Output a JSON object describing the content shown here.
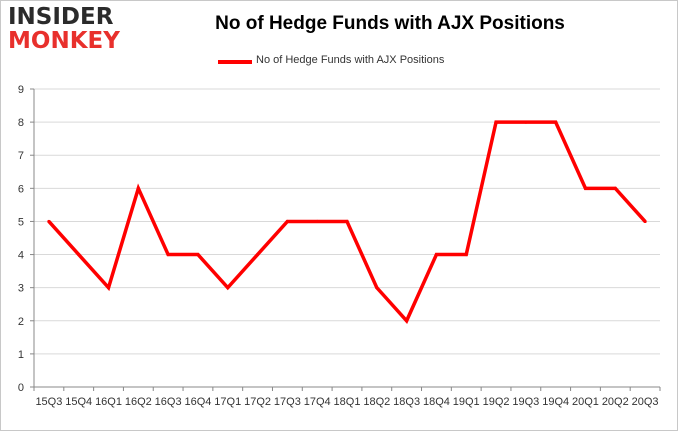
{
  "logo": {
    "line1": "INSIDER",
    "line2": "MONKEY"
  },
  "chart_data": {
    "type": "line",
    "title": "No of Hedge Funds with AJX Positions",
    "xlabel": "",
    "ylabel": "",
    "categories": [
      "15Q3",
      "15Q4",
      "16Q1",
      "16Q2",
      "16Q3",
      "16Q4",
      "17Q1",
      "17Q2",
      "17Q3",
      "17Q4",
      "18Q1",
      "18Q2",
      "18Q3",
      "18Q4",
      "19Q1",
      "19Q2",
      "19Q3",
      "19Q4",
      "20Q1",
      "20Q2",
      "20Q3"
    ],
    "series": [
      {
        "name": "No of Hedge Funds with AJX Positions",
        "color": "#ff0000",
        "values": [
          5,
          4,
          3,
          6,
          4,
          4,
          3,
          4,
          5,
          5,
          5,
          3,
          2,
          4,
          4,
          8,
          8,
          8,
          6,
          6,
          5
        ]
      }
    ],
    "ylim": [
      0,
      9
    ],
    "yticks": [
      0,
      1,
      2,
      3,
      4,
      5,
      6,
      7,
      8,
      9
    ],
    "grid": true,
    "legend_position": "top-center"
  }
}
